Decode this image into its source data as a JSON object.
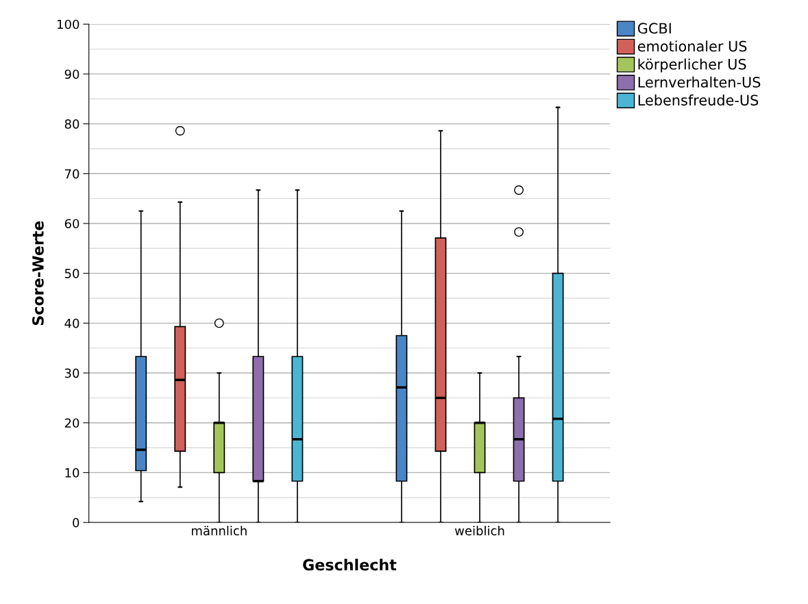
{
  "chart_data": {
    "type": "box",
    "xlabel": "Geschlecht",
    "ylabel": "Score-Werte",
    "categories": [
      "männlich",
      "weiblich"
    ],
    "ylim": [
      0,
      100
    ],
    "yticks": [
      0,
      {
        "value": 5,
        "label": null
      },
      10,
      {
        "value": 15,
        "label": null
      },
      20,
      {
        "value": 25,
        "label": null
      },
      30,
      {
        "value": 35,
        "label": null
      },
      40,
      {
        "value": 45,
        "label": null
      },
      50,
      {
        "value": 55,
        "label": null
      },
      60,
      {
        "value": 65,
        "label": null
      },
      70,
      {
        "value": 75,
        "label": null
      },
      80,
      {
        "value": 85,
        "label": null
      },
      90,
      {
        "value": 95,
        "label": null
      },
      100
    ],
    "grid": "y",
    "legend": "top right",
    "series": [
      {
        "name": "GCBI",
        "color": "#4a86c6",
        "boxes": [
          {
            "low": 4.2,
            "q1": 10.4,
            "median": 14.6,
            "q3": 33.3,
            "high": 62.5
          },
          {
            "low": 0,
            "q1": 8.3,
            "median": 27.1,
            "q3": 37.5,
            "high": 62.5
          }
        ]
      },
      {
        "name": "emotionaler US",
        "color": "#d2605a",
        "boxes": [
          {
            "low": 7.1,
            "q1": 14.3,
            "median": 28.6,
            "q3": 39.3,
            "high": 64.3,
            "outliers": [
              78.6
            ]
          },
          {
            "low": 0,
            "q1": 14.3,
            "median": 25,
            "q3": 57.1,
            "high": 78.6
          }
        ]
      },
      {
        "name": "körperlicher US",
        "color": "#a3c55c",
        "boxes": [
          {
            "low": 0,
            "q1": 10,
            "median": 20,
            "q3": 20,
            "high": 30,
            "outliers": [
              40
            ]
          },
          {
            "low": 0,
            "q1": 10,
            "median": 20,
            "q3": 20,
            "high": 30
          }
        ]
      },
      {
        "name": "Lernverhalten-US",
        "color": "#8e6fae",
        "boxes": [
          {
            "low": 0,
            "q1": 8.3,
            "median": 8.3,
            "q3": 33.3,
            "high": 66.7
          },
          {
            "low": 0,
            "q1": 8.3,
            "median": 16.7,
            "q3": 25,
            "high": 33.3,
            "outliers": [
              58.3,
              66.7
            ]
          }
        ]
      },
      {
        "name": "Lebensfreude-US",
        "color": "#4bb6d3",
        "boxes": [
          {
            "low": 0,
            "q1": 8.3,
            "median": 16.7,
            "q3": 33.3,
            "high": 66.7
          },
          {
            "low": 0,
            "q1": 8.3,
            "median": 20.8,
            "q3": 50,
            "high": 83.3
          }
        ]
      }
    ]
  }
}
